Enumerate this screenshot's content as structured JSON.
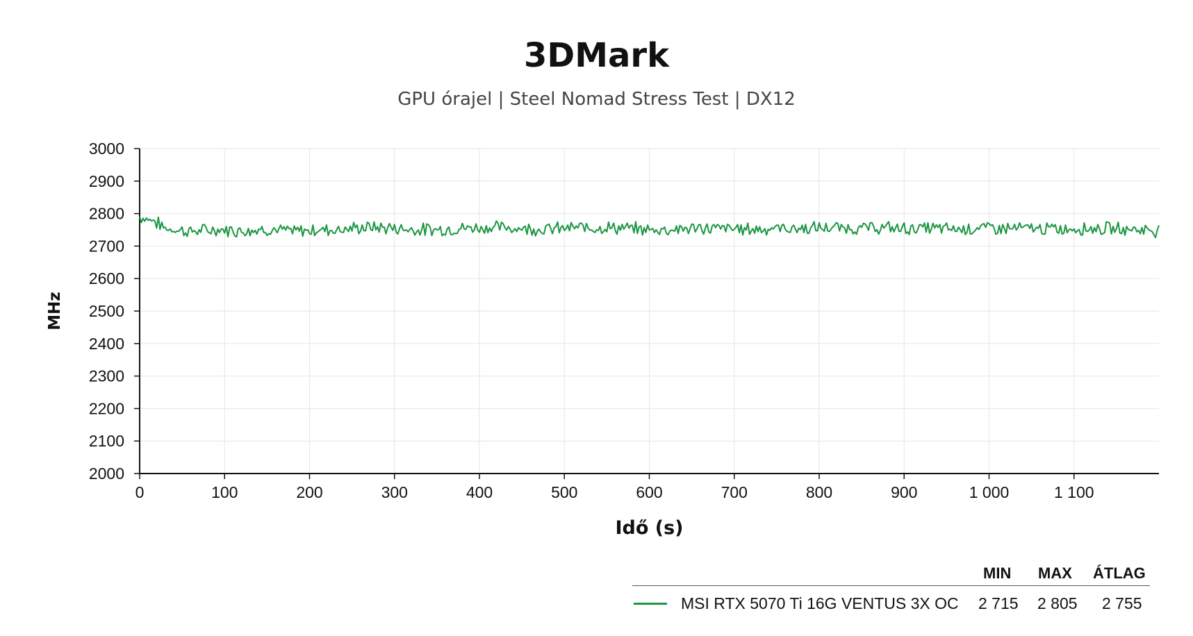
{
  "chart_data": {
    "type": "line",
    "title": "3DMark",
    "subtitle": "GPU órajel | Steel Nomad Stress Test | DX12",
    "xlabel": "Idő (s)",
    "ylabel": "MHz",
    "xlim": [
      0,
      1200
    ],
    "ylim": [
      2000,
      3000
    ],
    "xticks": [
      "0",
      "100",
      "200",
      "300",
      "400",
      "500",
      "600",
      "700",
      "800",
      "900",
      "1 000",
      "1 100"
    ],
    "yticks": [
      "2000",
      "2100",
      "2200",
      "2300",
      "2400",
      "2500",
      "2600",
      "2700",
      "2800",
      "2900",
      "3000"
    ],
    "grid": true,
    "series": [
      {
        "name": "MSI RTX 5070 Ti 16G VENTUS 3X OC",
        "color": "#1a9641",
        "x": [
          0,
          15,
          30,
          60,
          90,
          120,
          150,
          180,
          210,
          240,
          270,
          300,
          330,
          360,
          390,
          420,
          450,
          480,
          510,
          540,
          570,
          600,
          630,
          660,
          690,
          720,
          750,
          780,
          810,
          840,
          870,
          900,
          930,
          960,
          990,
          1020,
          1050,
          1080,
          1110,
          1140,
          1170,
          1200
        ],
        "values": [
          2790,
          2780,
          2755,
          2745,
          2750,
          2748,
          2752,
          2745,
          2750,
          2752,
          2758,
          2755,
          2750,
          2752,
          2756,
          2758,
          2755,
          2752,
          2756,
          2758,
          2755,
          2750,
          2752,
          2755,
          2754,
          2752,
          2755,
          2754,
          2756,
          2755,
          2756,
          2754,
          2755,
          2752,
          2756,
          2755,
          2754,
          2752,
          2755,
          2754,
          2752,
          2748
        ]
      }
    ]
  },
  "legend": {
    "headers": [
      "MIN",
      "MAX",
      "ÁTLAG"
    ],
    "rows": [
      {
        "name": "MSI RTX 5070 Ti 16G VENTUS 3X OC",
        "min": "2 715",
        "max": "2 805",
        "avg": "2 755",
        "color": "#1a9641"
      }
    ]
  }
}
